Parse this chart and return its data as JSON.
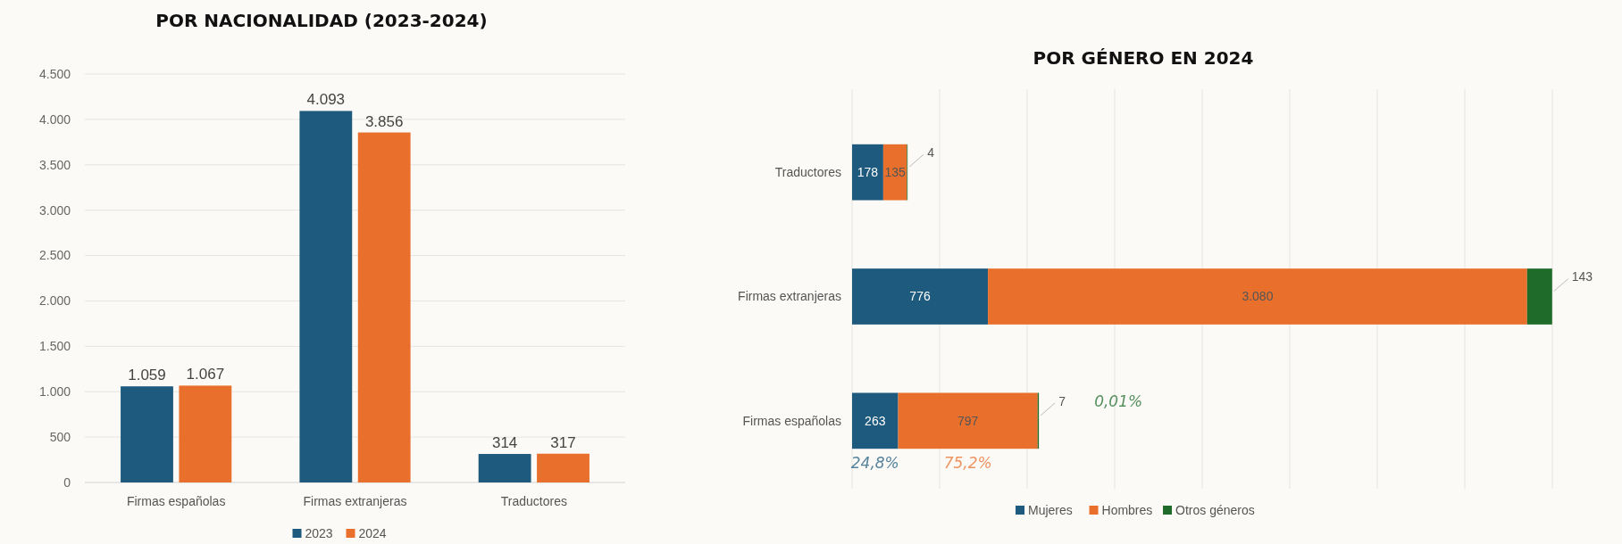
{
  "chart_data": [
    {
      "type": "bar",
      "title": "POR NACIONALIDAD (2023-2024)",
      "categories": [
        "Firmas españolas",
        "Firmas extranjeras",
        "Traductores"
      ],
      "series": [
        {
          "name": "2023",
          "color": "#1d5a7e",
          "values": [
            1059,
            4093,
            314
          ],
          "value_labels": [
            "1.059",
            "4.093",
            "314"
          ]
        },
        {
          "name": "2024",
          "color": "#e8702c",
          "values": [
            1067,
            3856,
            317
          ],
          "value_labels": [
            "1.067",
            "3.856",
            "317"
          ]
        }
      ],
      "ylim": [
        0,
        4500
      ],
      "yticks": [
        0,
        {
          "value": 500,
          "label": "500"
        },
        {
          "value": 1000,
          "label": "1.000"
        },
        {
          "value": 1500,
          "label": "1.500"
        },
        {
          "value": 2000,
          "label": "2.000"
        },
        {
          "value": 2500,
          "label": "2.500"
        },
        {
          "value": 3000,
          "label": "3.000"
        },
        {
          "value": 3500,
          "label": "3.500"
        },
        {
          "value": 4000,
          "label": "4.000"
        },
        {
          "value": 4500,
          "label": "4.500"
        }
      ],
      "grid": "y",
      "legend": "bottom"
    },
    {
      "type": "bar",
      "orientation": "horizontal",
      "stacked": true,
      "title": "POR GÉNERO EN 2024",
      "categories": [
        "Traductores",
        "Firmas extranjeras",
        "Firmas españolas"
      ],
      "series": [
        {
          "name": "Mujeres",
          "color": "#1d5a7e",
          "values": [
            178,
            776,
            263
          ],
          "value_labels": [
            "178",
            "776",
            "263"
          ]
        },
        {
          "name": "Hombres",
          "color": "#e8702c",
          "values": [
            135,
            3080,
            797
          ],
          "value_labels": [
            "135",
            "3.080",
            "797"
          ]
        },
        {
          "name": "Otros géneros",
          "color": "#1e6b2a",
          "values": [
            4,
            143,
            7
          ],
          "value_labels": [
            "4",
            "143",
            "7"
          ]
        }
      ],
      "xlim": [
        0,
        4000
      ],
      "xticks": [
        {
          "value": 0,
          "label": null
        },
        {
          "value": 500,
          "label": null
        },
        {
          "value": 1000,
          "label": null
        },
        {
          "value": 1500,
          "label": null
        },
        {
          "value": 2000,
          "label": null
        },
        {
          "value": 2500,
          "label": null
        },
        {
          "value": 3000,
          "label": null
        },
        {
          "value": 3500,
          "label": null
        },
        {
          "value": 4000,
          "label": null
        }
      ],
      "tick_labels": "y",
      "grid": "x",
      "legend": "bottom",
      "annotations": [
        "24,8%",
        "75,2%",
        "0,01%"
      ]
    }
  ]
}
